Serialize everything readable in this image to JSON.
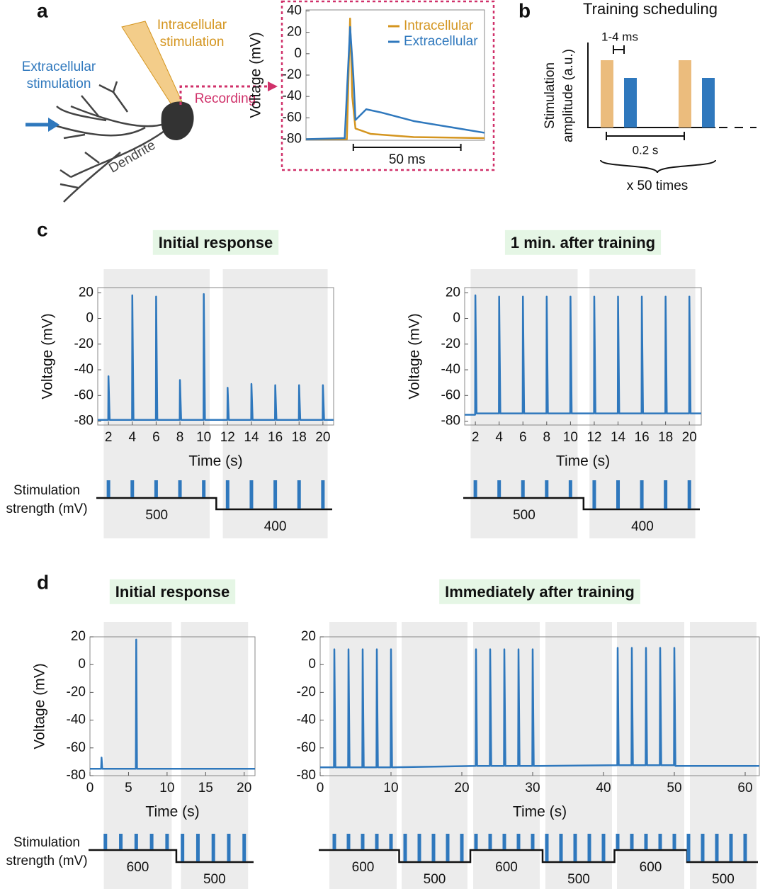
{
  "labels": {
    "a": "a",
    "b": "b",
    "c": "c",
    "d": "d"
  },
  "diagram": {
    "intracellular": [
      "Intracellular",
      "stimulation"
    ],
    "extracellular": [
      "Extracellular",
      "stimulation"
    ],
    "recording": "Recording",
    "dendrite": "Dendrite"
  },
  "schedule": {
    "title": "Training scheduling",
    "ylabel": [
      "Stimulation",
      "amplitude (a.u.)"
    ],
    "pulse_width": "1-4 ms",
    "interval": "0.2 s",
    "repeat": "x 50 times"
  },
  "stim_label": [
    "Stimulation",
    "strength (mV)"
  ],
  "chart_data": [
    {
      "type": "line",
      "ylabel": "Voltage (mV)",
      "xlim": [
        0,
        83
      ],
      "ylim": [
        -81,
        41
      ],
      "yticks": [
        40,
        20,
        0,
        -20,
        -40,
        -60,
        -80
      ],
      "scale_bar": {
        "label": "50 ms",
        "start": 22,
        "length": 50
      },
      "legend": "top-right",
      "series": [
        {
          "name": "Intracellular",
          "color": "#d4951f",
          "x": [
            0,
            19,
            20.5,
            21.5,
            23,
            30,
            50,
            83
          ],
          "values": [
            -80,
            -80,
            33,
            -40,
            -70,
            -75,
            -78,
            -79
          ]
        },
        {
          "name": "Extracellular",
          "color": "#2f78bd",
          "x": [
            0,
            18,
            20.5,
            22,
            23,
            28,
            35,
            50,
            83
          ],
          "values": [
            -80,
            -79,
            25,
            -20,
            -62,
            -52,
            -55,
            -63,
            -74
          ]
        }
      ]
    },
    {
      "type": "line",
      "title": "Initial response",
      "xlabel": "Time (s)",
      "ylabel": "Voltage (mV)",
      "xlim": [
        1.1,
        20.9
      ],
      "ylim": [
        -83,
        24
      ],
      "xticks": [
        2,
        4,
        6,
        8,
        10,
        12,
        14,
        16,
        18,
        20
      ],
      "yticks": [
        20,
        0,
        -20,
        -40,
        -60,
        -80
      ],
      "series": [
        {
          "color": "#2f78bd",
          "x": [
            1.1,
            1.98,
            2,
            2.1,
            3.98,
            4,
            4.1,
            5.98,
            6,
            6.1,
            7.98,
            8,
            8.1,
            9.98,
            10,
            10.1,
            11.98,
            12,
            12.1,
            13.98,
            14,
            14.1,
            15.98,
            16,
            16.1,
            17.98,
            18,
            18.1,
            19.98,
            20,
            20.1,
            20.9
          ],
          "values": [
            -79,
            -79,
            -45,
            -79,
            -79,
            18,
            -79,
            -79,
            17,
            -79,
            -79,
            -48,
            -79,
            -79,
            19,
            -79,
            -79,
            -54,
            -79,
            -79,
            -51,
            -79,
            -79,
            -52,
            -79,
            -79,
            -52,
            -79,
            -79,
            -52,
            -79,
            -79
          ]
        }
      ],
      "stim": {
        "pulses": [
          2,
          4,
          6,
          8,
          10,
          12,
          14,
          16,
          18,
          20
        ],
        "spans": [
          [
            1.6,
            10.5
          ],
          [
            11.6,
            20.4
          ]
        ],
        "levels": [
          500,
          400
        ]
      }
    },
    {
      "type": "line",
      "title": "1 min. after training",
      "xlabel": "Time (s)",
      "ylabel": "Voltage (mV)",
      "xlim": [
        1.1,
        21.0
      ],
      "ylim": [
        -83,
        24
      ],
      "xticks": [
        2,
        4,
        6,
        8,
        10,
        12,
        14,
        16,
        18,
        20
      ],
      "yticks": [
        20,
        0,
        -20,
        -40,
        -60,
        -80
      ],
      "series": [
        {
          "color": "#2f78bd",
          "x": [
            1.1,
            1.98,
            2,
            2.1,
            3.98,
            4,
            4.1,
            5.98,
            6,
            6.1,
            7.98,
            8,
            8.1,
            9.98,
            10,
            10.1,
            11.98,
            12,
            12.1,
            13.98,
            14,
            14.1,
            15.98,
            16,
            16.1,
            17.98,
            18,
            18.1,
            19.98,
            20,
            20.1,
            21.0
          ],
          "values": [
            -75,
            -75,
            18,
            -74,
            -74,
            17,
            -74,
            -74,
            17,
            -74,
            -74,
            17,
            -74,
            -74,
            17,
            -74,
            -74,
            17,
            -74,
            -74,
            17,
            -74,
            -74,
            17,
            -74,
            -74,
            17,
            -74,
            -74,
            17,
            -74,
            -74
          ]
        }
      ],
      "stim": {
        "pulses": [
          2,
          4,
          6,
          8,
          10,
          12,
          14,
          16,
          18,
          20
        ],
        "spans": [
          [
            1.6,
            10.6
          ],
          [
            11.6,
            20.5
          ]
        ],
        "levels": [
          500,
          400
        ]
      }
    },
    {
      "type": "line",
      "title": "Initial response",
      "xlabel": "Time (s)",
      "ylabel": "Voltage (mV)",
      "xlim": [
        0,
        21.4
      ],
      "ylim": [
        -80,
        20
      ],
      "xticks": [
        0,
        5,
        10,
        15,
        20
      ],
      "yticks": [
        20,
        0,
        -20,
        -40,
        -60,
        -80
      ],
      "series": [
        {
          "color": "#2f78bd",
          "x": [
            0,
            1.45,
            1.5,
            1.6,
            5.95,
            6,
            6.1,
            21.4
          ],
          "values": [
            -75,
            -75,
            -67,
            -75,
            -75,
            18,
            -75,
            -75
          ]
        }
      ],
      "stim": {
        "pulses": [
          2,
          4,
          6,
          8,
          10,
          12,
          14,
          16,
          18,
          20
        ],
        "spans": [
          [
            1.8,
            10.6
          ],
          [
            11.8,
            20.5
          ]
        ],
        "levels": [
          600,
          500
        ]
      }
    },
    {
      "type": "line",
      "title": "Immediately after training",
      "xlabel": "Time (s)",
      "xlim": [
        0,
        62
      ],
      "ylim": [
        -80,
        20
      ],
      "xticks": [
        0,
        10,
        20,
        30,
        40,
        50,
        60
      ],
      "yticks": [
        20,
        0,
        -20,
        -40,
        -60,
        -80
      ],
      "series": [
        {
          "color": "#2f78bd",
          "x": [
            0,
            1.95,
            2,
            2.15,
            3.95,
            4,
            4.15,
            5.95,
            6,
            6.15,
            7.95,
            8,
            8.15,
            9.95,
            10,
            10.15,
            21.95,
            22,
            22.15,
            23.95,
            24,
            24.15,
            25.95,
            26,
            26.15,
            27.95,
            28,
            28.15,
            29.95,
            30,
            30.15,
            41.95,
            42,
            42.15,
            43.95,
            44,
            44.15,
            45.95,
            46,
            46.15,
            47.95,
            48,
            48.15,
            49.95,
            50,
            50.15,
            62
          ],
          "values": [
            -74,
            -74,
            11,
            -74,
            -74,
            11,
            -74,
            -74,
            11,
            -74,
            -74,
            11,
            -74,
            -74,
            11,
            -74,
            -73,
            11,
            -73,
            -73,
            11,
            -73,
            -73,
            11,
            -73,
            -73,
            11,
            -73,
            -73,
            11,
            -73,
            -72.5,
            12,
            -72.5,
            -72.5,
            12,
            -72.5,
            -72.5,
            12,
            -72.5,
            -72.5,
            12,
            -72.5,
            -72.5,
            12,
            -73,
            -73
          ]
        }
      ],
      "stim": {
        "pulses": [
          2,
          4,
          6,
          8,
          10,
          12,
          14,
          16,
          18,
          20,
          22,
          24,
          26,
          28,
          30,
          32,
          34,
          36,
          38,
          40,
          42,
          44,
          46,
          48,
          50,
          52,
          54,
          56,
          58,
          60
        ],
        "spans": [
          [
            1.3,
            10.8
          ],
          [
            11.5,
            20.8
          ],
          [
            21.6,
            31
          ],
          [
            31.8,
            41.2
          ],
          [
            41.9,
            51.4
          ],
          [
            52.2,
            61.6
          ]
        ],
        "levels": [
          600,
          500,
          600,
          500,
          600,
          500
        ]
      }
    }
  ]
}
